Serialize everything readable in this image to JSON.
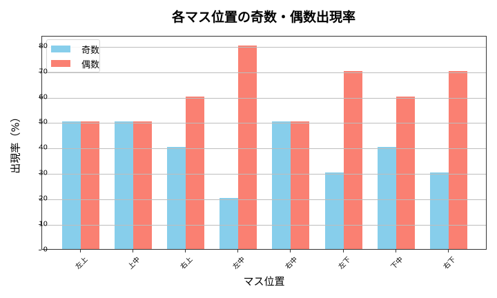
{
  "chart_data": {
    "type": "bar",
    "title": "各マス位置の奇数・偶数出現率",
    "xlabel": "マス位置",
    "ylabel": "出現率（%）",
    "categories": [
      "左上",
      "上中",
      "右上",
      "左中",
      "右中",
      "左下",
      "下中",
      "右下"
    ],
    "series": [
      {
        "name": "奇数",
        "color": "#87ceeb",
        "values": [
          50,
          50,
          40,
          20,
          50,
          30,
          40,
          30
        ]
      },
      {
        "name": "偶数",
        "color": "#fa8072",
        "values": [
          50,
          50,
          60,
          80,
          50,
          70,
          60,
          70
        ]
      }
    ],
    "ylim": [
      0,
      84
    ],
    "yticks": [
      0,
      10,
      20,
      30,
      40,
      50,
      60,
      70,
      80
    ],
    "grid": "y",
    "legend_position": "upper left"
  }
}
